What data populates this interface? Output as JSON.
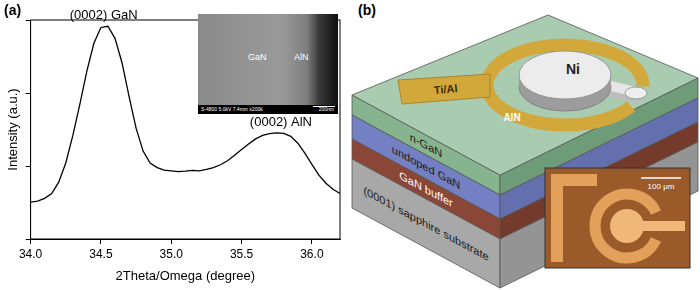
{
  "chart_data": {
    "type": "line",
    "x_label": "2Theta/Omega (degree)",
    "y_label": "Intensity (a.u.)",
    "x": [
      34.0,
      34.05,
      34.1,
      34.15,
      34.2,
      34.25,
      34.3,
      34.35,
      34.4,
      34.45,
      34.5,
      34.55,
      34.6,
      34.65,
      34.7,
      34.75,
      34.8,
      34.85,
      34.9,
      34.95,
      35.0,
      35.05,
      35.1,
      35.15,
      35.2,
      35.25,
      35.3,
      35.35,
      35.4,
      35.45,
      35.5,
      35.55,
      35.6,
      35.65,
      35.7,
      35.75,
      35.8,
      35.85,
      35.9,
      35.95,
      36.0,
      36.05,
      36.1,
      36.15,
      36.2
    ],
    "values": [
      32,
      33,
      36,
      42,
      60,
      110,
      260,
      700,
      2000,
      4800,
      7900,
      8200,
      5600,
      2600,
      900,
      330,
      160,
      110,
      95,
      88,
      86,
      84,
      85,
      87,
      86,
      90,
      95,
      104,
      118,
      140,
      168,
      200,
      235,
      262,
      278,
      285,
      280,
      255,
      205,
      150,
      105,
      75,
      58,
      48,
      42
    ],
    "color": "#000000",
    "xlim": [
      34.0,
      36.2
    ],
    "xticks": [
      {
        "value": 34.0,
        "label": "34.0"
      },
      {
        "value": 34.5,
        "label": "34.5"
      },
      {
        "value": 35.0,
        "label": "35.0"
      },
      {
        "value": 35.5,
        "label": "35.5"
      },
      {
        "value": 36.0,
        "label": "36.0"
      }
    ],
    "ylim": [
      10,
      10000
    ],
    "yticks": [
      10,
      100,
      1000,
      10000
    ],
    "log": "y",
    "tick_labels": "x",
    "grid": false,
    "annotations": [
      {
        "text": "(0002) GaN",
        "x": 34.52
      },
      {
        "text": "(0002) AlN",
        "x": 35.78
      }
    ]
  },
  "panel_labels": [
    "(a)",
    "(b)"
  ],
  "inset_a": {
    "texts": [
      "GaN",
      "AlN"
    ],
    "caption": "S-4800 5.0kV 7.4mm x200k",
    "scale_bar": "200nm"
  },
  "diagram_b": {
    "layers": [
      "n-GaN",
      "undoped GaN",
      "GaN buffer",
      "(0001) sapphire substrate"
    ],
    "contacts": [
      "Ti/Al",
      "Ni",
      "AlN"
    ],
    "inset_scale_bar": "100 μm"
  }
}
